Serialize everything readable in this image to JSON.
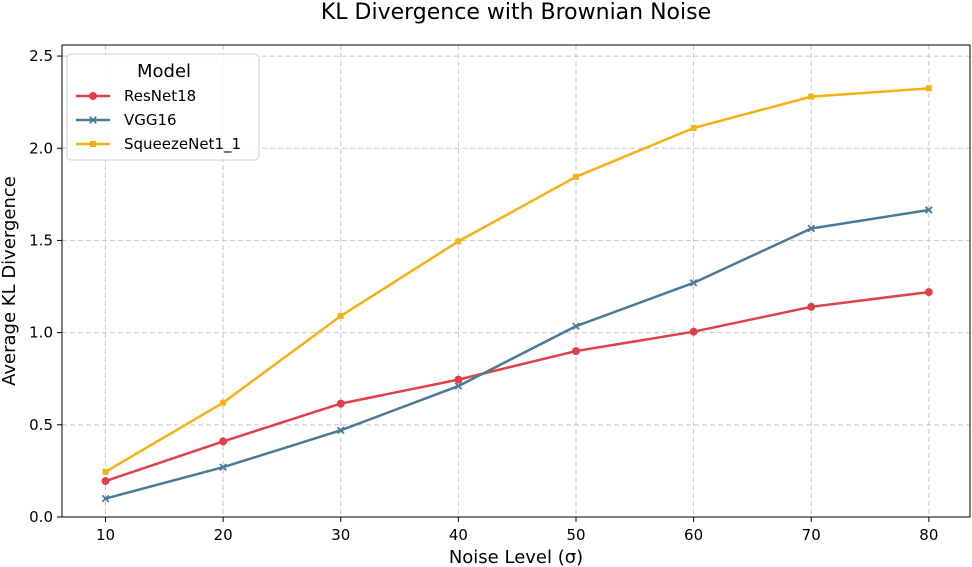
{
  "chart_data": {
    "type": "line",
    "title": "KL Divergence with Brownian Noise",
    "xlabel": "Noise Level (σ)",
    "ylabel": "Average KL Divergence",
    "x": [
      10,
      20,
      30,
      40,
      50,
      60,
      70,
      80
    ],
    "xticks": [
      "10",
      "20",
      "30",
      "40",
      "50",
      "60",
      "70",
      "80"
    ],
    "yticks": [
      "0.0",
      "0.5",
      "1.0",
      "1.5",
      "2.0",
      "2.5"
    ],
    "xlim": [
      6.3,
      83.5
    ],
    "ylim": [
      0,
      2.56
    ],
    "grid": true,
    "legend": {
      "title": "Model",
      "placement": "top-left"
    },
    "series": [
      {
        "name": "ResNet18",
        "color": "#e0404a",
        "marker": "circle",
        "values": [
          0.195,
          0.41,
          0.615,
          0.745,
          0.9,
          1.005,
          1.14,
          1.22
        ]
      },
      {
        "name": "VGG16",
        "color": "#4a7a97",
        "marker": "x",
        "values": [
          0.1,
          0.27,
          0.47,
          0.71,
          1.035,
          1.27,
          1.565,
          1.665
        ]
      },
      {
        "name": "SqueezeNet1_1",
        "color": "#f5b014",
        "marker": "square",
        "values": [
          0.245,
          0.62,
          1.09,
          1.495,
          1.845,
          2.11,
          2.28,
          2.325
        ]
      }
    ]
  }
}
